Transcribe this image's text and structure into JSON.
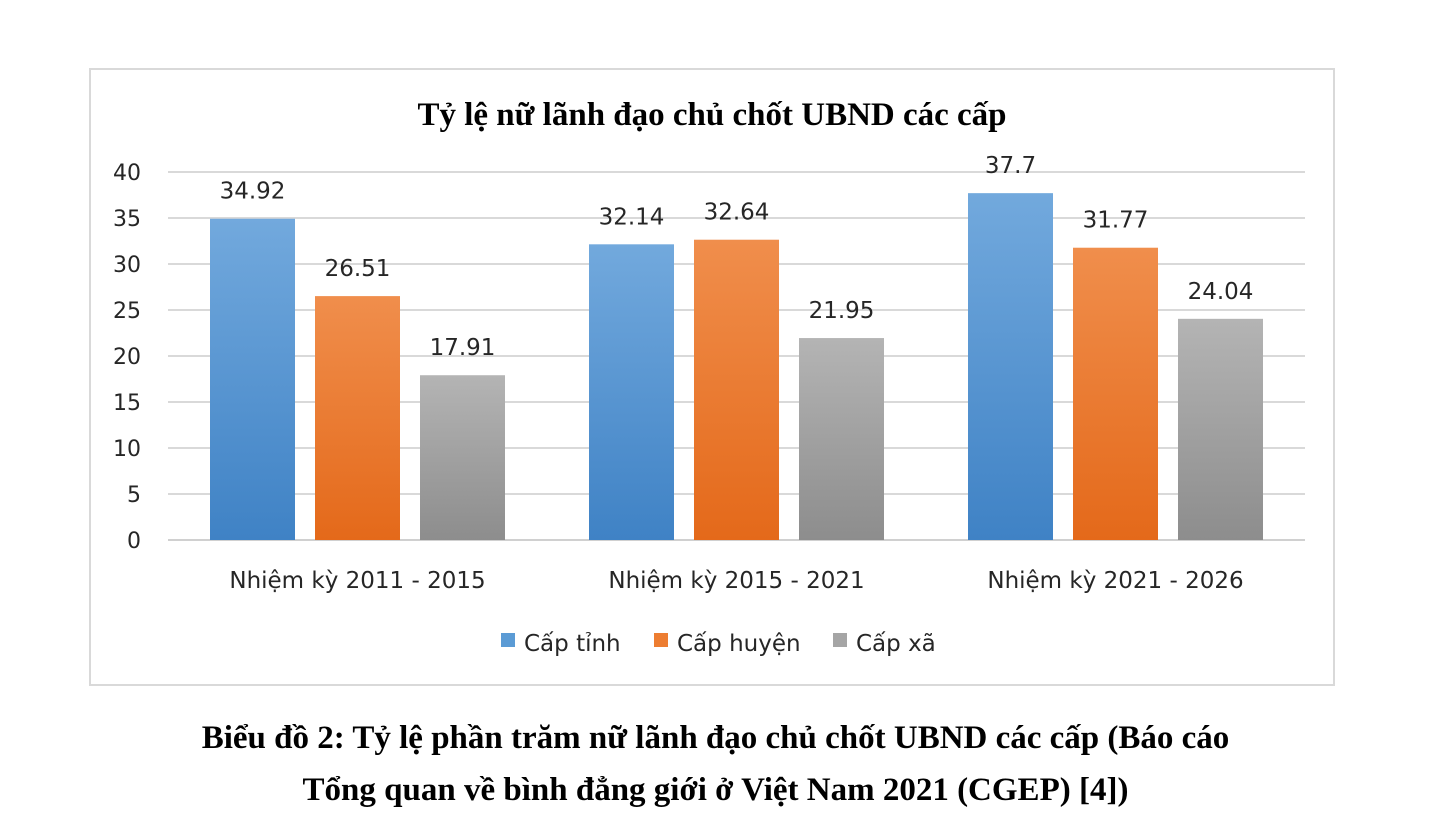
{
  "chart_data": {
    "type": "bar",
    "title": "Tỷ lệ nữ lãnh đạo chủ chốt UBND các cấp",
    "categories": [
      "Nhiệm kỳ 2011 - 2015",
      "Nhiệm kỳ 2015 - 2021",
      "Nhiệm kỳ 2021 - 2026"
    ],
    "series": [
      {
        "name": "Cấp tỉnh",
        "values": [
          34.92,
          32.14,
          37.7
        ],
        "color": "#5b9bd5"
      },
      {
        "name": "Cấp huyện",
        "values": [
          26.51,
          32.64,
          31.77
        ],
        "color": "#ed7d31"
      },
      {
        "name": "Cấp xã",
        "values": [
          17.91,
          21.95,
          24.04
        ],
        "color": "#a5a5a5"
      }
    ],
    "ylim": [
      0,
      40
    ],
    "yticks": [
      0,
      5,
      10,
      15,
      20,
      25,
      30,
      35,
      40
    ],
    "grid": true,
    "legend_position": "bottom",
    "xlabel": "",
    "ylabel": ""
  },
  "caption": {
    "line1_bold": "Biểu đồ 2",
    "line1_rest": ": Tỷ lệ phần trăm nữ lãnh đạo chủ chốt UBND các cấp (Báo cáo",
    "line2": "Tổng quan về bình đẳng giới ở Việt Nam 2021 (CGEP) [4])"
  }
}
